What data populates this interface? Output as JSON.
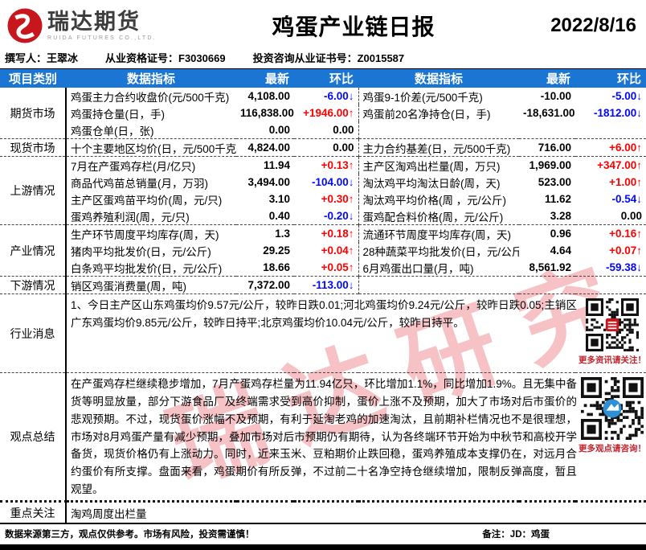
{
  "header": {
    "logo": {
      "brand": "瑞达期货",
      "sub": "RUIDA FUTURES CO.,LTD."
    },
    "title": "鸡蛋产业链日报",
    "date": "2022/8/16"
  },
  "meta": {
    "author": "撰写人：王翠冰",
    "cert1": "从业资格证号：F3030669",
    "cert2": "投资咨询从业证书号：Z0015587"
  },
  "watermark": "瑞达研究",
  "colors": {
    "header_blue": "#1a75d3",
    "up_red": "#ff0000",
    "down_blue": "#0008ff",
    "caption_red": "#c3242e"
  },
  "table": {
    "headers": [
      "项目类别",
      "数据指标",
      "最新",
      "环比",
      "数据指标",
      "最新",
      "环比"
    ],
    "groups": [
      {
        "label": "期货市场",
        "rows": [
          {
            "left": {
              "name": "鸡蛋主力合约收盘价(元/500千克)",
              "latest": "4,108.00",
              "change": "-6.00",
              "dir": "down"
            },
            "right": {
              "name": "鸡蛋9-1价差(元/500千克)",
              "latest": "-10.00",
              "change": "-5.00",
              "dir": "down"
            }
          },
          {
            "left": {
              "name": "鸡蛋持仓量(日，手)",
              "latest": "116,838.00",
              "change": "+1946.00",
              "dir": "up"
            },
            "right": {
              "name": "鸡蛋前20名净持仓(日，手)",
              "latest": "-18,631.00",
              "change": "-1812.00",
              "dir": "down"
            }
          },
          {
            "left": {
              "name": "鸡蛋仓单(日，张)",
              "latest": "0.00",
              "change": "0.00",
              "dir": "flat"
            },
            "right": null
          }
        ]
      },
      {
        "label": "现货市场",
        "rows": [
          {
            "left": {
              "name": "十个主要地区均价(日，元/500千克)",
              "latest": "4,824.00",
              "change": "0.00",
              "dir": "flat"
            },
            "right": {
              "name": "主力合约基差(日，元/500千克)",
              "latest": "716.00",
              "change": "+6.00",
              "dir": "up"
            }
          }
        ]
      },
      {
        "label": "上游情况",
        "rows": [
          {
            "left": {
              "name": "7月在产蛋鸡存栏(月/亿只)",
              "latest": "11.94",
              "change": "+0.13",
              "dir": "up"
            },
            "right": {
              "name": "主产区淘鸡出栏量(周，万只)",
              "latest": "1,969.00",
              "change": "+347.00",
              "dir": "up"
            }
          },
          {
            "left": {
              "name": "商品代鸡苗总销量(月，万羽)",
              "latest": "3,494.00",
              "change": "-104.00",
              "dir": "down"
            },
            "right": {
              "name": "淘汰鸡平均淘汰日龄(周，天)",
              "latest": "523.00",
              "change": "+1.00",
              "dir": "up"
            }
          },
          {
            "left": {
              "name": "主产区蛋鸡苗平均价(周，元/只)",
              "latest": "3.10",
              "change": "+0.30",
              "dir": "up"
            },
            "right": {
              "name": "淘汰鸡平均价格(周 ，元/公斤)",
              "latest": "11.62",
              "change": "-0.54",
              "dir": "down"
            }
          },
          {
            "left": {
              "name": "蛋鸡养殖利润(周，元/只)",
              "latest": "0.40",
              "change": "-0.20",
              "dir": "down"
            },
            "right": {
              "name": "蛋鸡配合料价格(周，元/公斤)",
              "latest": "3.28",
              "change": "0.00",
              "dir": "flat"
            }
          }
        ]
      },
      {
        "label": "产业情况",
        "rows": [
          {
            "left": {
              "name": "生产环节周度平均库存(周，天)",
              "latest": "1.3",
              "change": "+0.18",
              "dir": "up"
            },
            "right": {
              "name": "流通环节周度平均库存(周，天)",
              "latest": "0.96",
              "change": "+0.16",
              "dir": "up"
            }
          },
          {
            "left": {
              "name": "猪肉平均批发价(日，元/公斤)",
              "latest": "29.25",
              "change": "+0.04",
              "dir": "up"
            },
            "right": {
              "name": "28种蔬菜平均批发价(日，元/公斤)",
              "latest": "4.64",
              "change": "+0.07",
              "dir": "up"
            }
          },
          {
            "left": {
              "name": "白条鸡平均批发价(日，元/公斤)",
              "latest": "18.66",
              "change": "+0.05",
              "dir": "up"
            },
            "right": {
              "name": "6月鸡蛋出口量(月，吨)",
              "latest": "8,561.92",
              "change": "-59.38",
              "dir": "down"
            }
          }
        ]
      },
      {
        "label": "下游情况",
        "rows": [
          {
            "left": {
              "name": "销区鸡蛋消费量(周，吨)",
              "latest": "7,372.00",
              "change": "-113.00",
              "dir": "down"
            },
            "right": null
          }
        ]
      }
    ],
    "text_rows": [
      {
        "kind": "news",
        "label": "行业消息",
        "text": "1、今日主产区山东鸡蛋均价9.57元/公斤，较昨日跌0.01;河北鸡蛋均价9.24元/公斤，较昨日跌0.05;主销区广东鸡蛋均价9.85元/公斤，较昨日持平;北京鸡蛋均价10.04元/公斤，较昨日持平。",
        "qr_caption": "更多资讯请关注！",
        "qr_style": "red-square"
      },
      {
        "kind": "opinion",
        "label": "观点总结",
        "text": "在产蛋鸡存栏继续稳步增加，7月产蛋鸡存栏量为11.94亿只，环比增加1.1%，同比增加1.9%。且无集中备货等明显放量，部分下游食品厂及终端需求受到高价抑制，蛋价上涨不及预期，加大了市场对后市蛋价的悲观预期。不过，现货蛋价涨幅不及预期，有利于延淘老鸡的加速淘汰，且前期补栏情况也不是很理想，市场对8月鸡蛋产量有减少预期，叠加市场对后市预期仍有期待，认为各终端环节开始为中秋节和高校开学备货，现货价格仍有上涨动力。同时，近来玉米、豆粕期价止跌回稳，蛋鸡养殖成本支撑仍在，对远月合约蛋价有所支撑。盘面来看，鸡蛋期价有所反弹，不过前二十名净空持仓继续增加，限制反弹高度，暂且观望。",
        "qr_caption": "更多观点请咨询！",
        "qr_style": "blue-circle"
      },
      {
        "kind": "focus",
        "label": "重点关注",
        "text": "淘鸡周度出栏量"
      }
    ]
  },
  "footer": {
    "disclaimer": "数据来源第三方，观点仅供参考。市场有风险，投资需谨慎！",
    "note": "备注：JD：鸡蛋"
  }
}
